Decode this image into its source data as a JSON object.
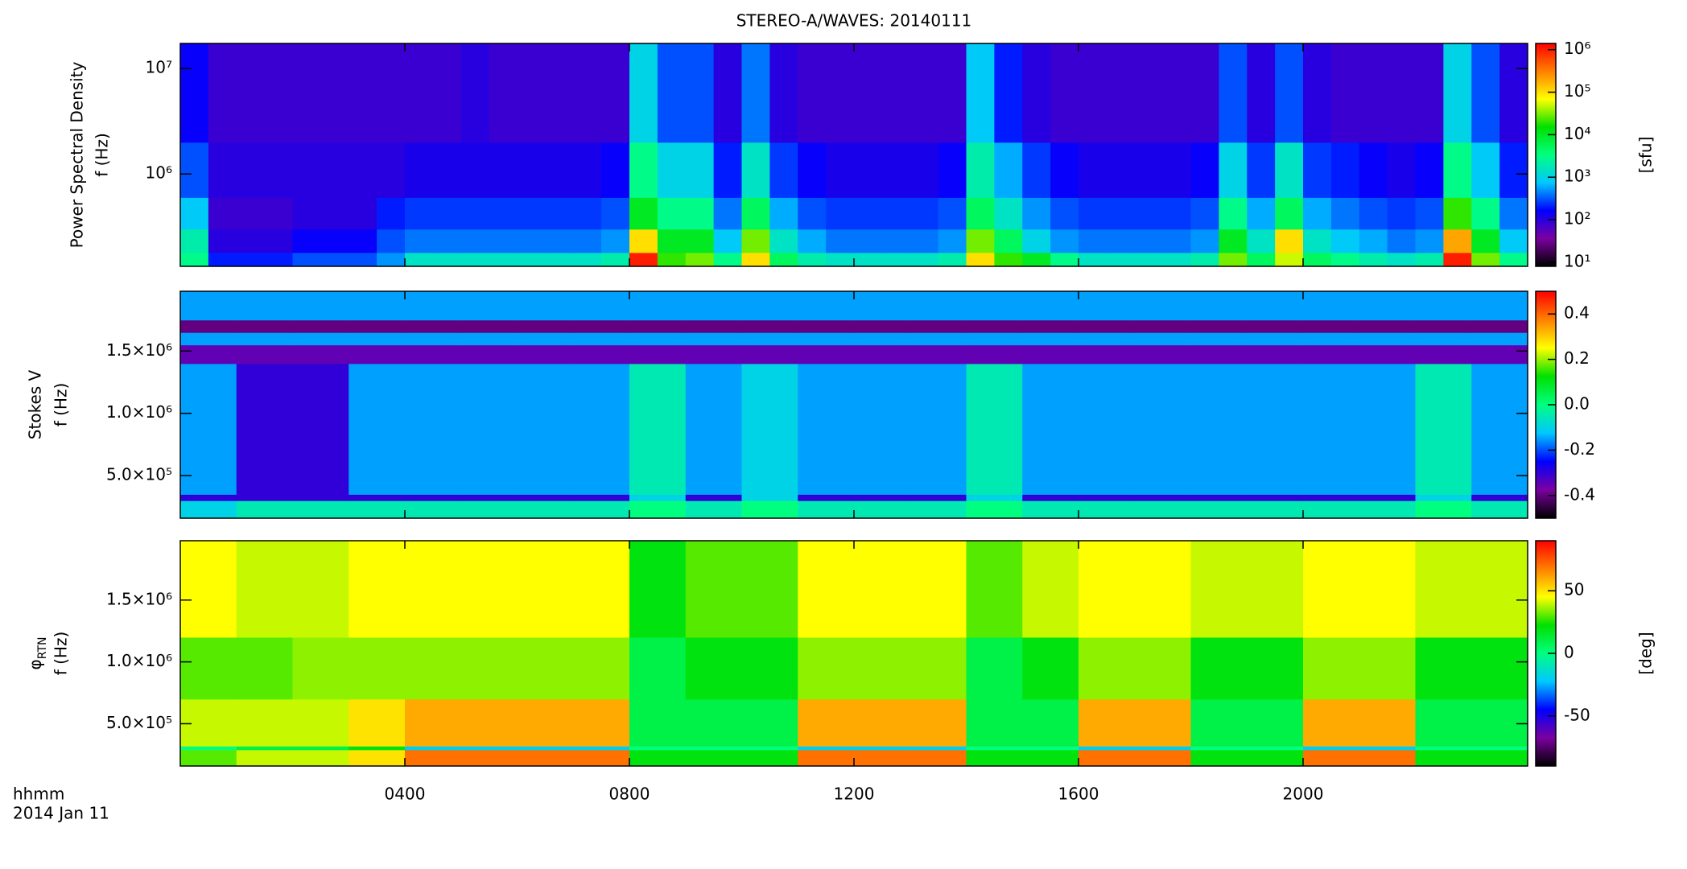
{
  "chart_data": [
    {
      "type": "heatmap",
      "title": "STEREO-A/WAVES: 20140111",
      "y_label": [
        "Power Spectral Density",
        "f (Hz)"
      ],
      "colorbar_label": "[sfu]",
      "y_scale": "log",
      "color_scale": "log",
      "colormap": [
        "#000000",
        "#7b00a0",
        "#0000ff",
        "#00c8ff",
        "#00ff80",
        "#00e000",
        "#ffff00",
        "#ff8000",
        "#ff0000"
      ],
      "xlim": [
        0,
        24
      ],
      "xticks": [
        4,
        8,
        12,
        16,
        20
      ],
      "ylim": [
        133000,
        17300000
      ],
      "yticks": [
        {
          "value": 1000000,
          "label": "10⁶"
        },
        {
          "value": 10000000,
          "label": "10⁷"
        }
      ],
      "clim": [
        8,
        1400000
      ],
      "cticks": [
        {
          "value": 10,
          "label": "10¹"
        },
        {
          "value": 100,
          "label": "10²"
        },
        {
          "value": 1000,
          "label": "10³"
        },
        {
          "value": 10000,
          "label": "10⁴"
        },
        {
          "value": 100000,
          "label": "10⁵"
        },
        {
          "value": 1000000,
          "label": "10⁶"
        }
      ],
      "xbins": [
        0,
        0.5,
        1,
        1.5,
        2,
        2.5,
        3,
        3.5,
        4,
        4.5,
        5,
        5.5,
        6,
        6.5,
        7,
        7.5,
        8,
        8.5,
        9,
        9.5,
        10,
        10.5,
        11,
        11.5,
        12,
        12.5,
        13,
        13.5,
        14,
        14.5,
        15,
        15.5,
        16,
        16.5,
        17,
        17.5,
        18,
        18.5,
        19,
        19.5,
        20,
        20.5,
        21,
        21.5,
        22,
        22.5,
        23,
        23.5,
        24
      ],
      "ybins": [
        133000,
        180000,
        300000,
        600000,
        2000000,
        17300000
      ],
      "z": [
        [
          3000,
          200,
          200,
          200,
          300,
          300,
          300,
          500,
          1500,
          1500,
          1500,
          1500,
          1500,
          1500,
          1500,
          2000,
          1000000,
          20000,
          30000,
          3000,
          100000,
          5000,
          2000,
          1500,
          1500,
          1500,
          1500,
          2000,
          100000,
          20000,
          10000,
          3000,
          1500,
          1500,
          1500,
          1500,
          2000,
          30000,
          5000,
          50000,
          5000,
          3000,
          2000,
          1500,
          2000,
          1000000,
          30000,
          3000
        ],
        [
          2000,
          100,
          100,
          100,
          150,
          150,
          150,
          300,
          400,
          400,
          400,
          400,
          400,
          400,
          400,
          500,
          100000,
          10000,
          10000,
          800,
          30000,
          1500,
          600,
          400,
          400,
          400,
          400,
          500,
          30000,
          5000,
          1000,
          500,
          400,
          400,
          400,
          400,
          500,
          10000,
          1500,
          100000,
          1500,
          800,
          600,
          400,
          500,
          200000,
          10000,
          800
        ],
        [
          800,
          80,
          80,
          80,
          100,
          100,
          100,
          200,
          250,
          250,
          250,
          250,
          250,
          250,
          250,
          300,
          10000,
          3000,
          3000,
          400,
          5000,
          600,
          300,
          250,
          250,
          250,
          250,
          300,
          5000,
          1500,
          500,
          300,
          250,
          250,
          250,
          250,
          300,
          3000,
          600,
          5000,
          600,
          400,
          300,
          250,
          300,
          20000,
          3000,
          400
        ],
        [
          300,
          100,
          100,
          100,
          100,
          100,
          100,
          100,
          120,
          120,
          120,
          120,
          120,
          120,
          120,
          150,
          3000,
          1000,
          1000,
          200,
          1500,
          250,
          150,
          120,
          120,
          120,
          120,
          150,
          2000,
          600,
          250,
          150,
          120,
          120,
          120,
          120,
          150,
          1000,
          250,
          1500,
          250,
          200,
          150,
          120,
          150,
          3000,
          800,
          200
        ],
        [
          150,
          80,
          80,
          80,
          80,
          80,
          80,
          80,
          80,
          80,
          100,
          80,
          80,
          80,
          80,
          80,
          1000,
          300,
          300,
          100,
          400,
          100,
          80,
          80,
          80,
          80,
          80,
          80,
          800,
          200,
          100,
          80,
          80,
          80,
          80,
          80,
          80,
          300,
          100,
          300,
          100,
          80,
          80,
          80,
          80,
          1000,
          300,
          100
        ]
      ]
    },
    {
      "type": "heatmap",
      "y_label": [
        "Stokes V",
        "f (Hz)"
      ],
      "y_scale": "linear",
      "color_scale": "linear",
      "colormap": [
        "#000000",
        "#7b00a0",
        "#0000ff",
        "#00c8ff",
        "#00ff80",
        "#00e000",
        "#ffff00",
        "#ff8000",
        "#ff0000"
      ],
      "xlim": [
        0,
        24
      ],
      "xticks": [
        4,
        8,
        12,
        16,
        20
      ],
      "ylim": [
        158000,
        1980000
      ],
      "yticks": [
        {
          "value": 500000,
          "label": "5.0×10⁵"
        },
        {
          "value": 1000000,
          "label": "1.0×10⁶"
        },
        {
          "value": 1500000,
          "label": "1.5×10⁶"
        }
      ],
      "clim": [
        -0.5,
        0.5
      ],
      "cticks": [
        -0.4,
        -0.2,
        {
          "value": 0,
          "label": "0.0"
        },
        0.2,
        0.4
      ],
      "xbins": [
        0,
        1,
        2,
        3,
        4,
        5,
        6,
        7,
        8,
        9,
        10,
        11,
        12,
        13,
        14,
        15,
        16,
        17,
        18,
        19,
        20,
        21,
        22,
        23,
        24
      ],
      "ybins": [
        158000,
        300000,
        350000,
        1400000,
        1550000,
        1650000,
        1750000,
        1980000
      ],
      "z": [
        [
          -0.1,
          -0.05,
          -0.05,
          -0.05,
          -0.05,
          -0.05,
          -0.05,
          -0.05,
          0,
          -0.05,
          0,
          -0.05,
          -0.05,
          -0.05,
          0,
          -0.05,
          -0.05,
          -0.05,
          -0.05,
          -0.05,
          -0.05,
          -0.05,
          0,
          -0.05
        ],
        [
          -0.3,
          -0.3,
          -0.3,
          -0.3,
          -0.3,
          -0.3,
          -0.3,
          -0.3,
          -0.1,
          -0.3,
          -0.1,
          -0.3,
          -0.3,
          -0.3,
          -0.1,
          -0.3,
          -0.3,
          -0.3,
          -0.3,
          -0.3,
          -0.3,
          -0.3,
          -0.1,
          -0.3
        ],
        [
          -0.15,
          -0.3,
          -0.3,
          -0.15,
          -0.15,
          -0.15,
          -0.15,
          -0.15,
          -0.05,
          -0.15,
          -0.1,
          -0.15,
          -0.15,
          -0.15,
          -0.05,
          -0.15,
          -0.15,
          -0.15,
          -0.15,
          -0.15,
          -0.15,
          -0.15,
          -0.05,
          -0.15
        ],
        [
          -0.35,
          -0.35,
          -0.35,
          -0.35,
          -0.35,
          -0.35,
          -0.35,
          -0.35,
          -0.35,
          -0.35,
          -0.35,
          -0.35,
          -0.35,
          -0.35,
          -0.35,
          -0.35,
          -0.35,
          -0.35,
          -0.35,
          -0.35,
          -0.35,
          -0.35,
          -0.35,
          -0.35
        ],
        [
          -0.15,
          -0.15,
          -0.15,
          -0.15,
          -0.15,
          -0.15,
          -0.15,
          -0.15,
          -0.15,
          -0.15,
          -0.15,
          -0.15,
          -0.15,
          -0.15,
          -0.15,
          -0.15,
          -0.15,
          -0.15,
          -0.15,
          -0.15,
          -0.15,
          -0.15,
          -0.15,
          -0.15
        ],
        [
          -0.4,
          -0.4,
          -0.4,
          -0.4,
          -0.4,
          -0.4,
          -0.4,
          -0.4,
          -0.4,
          -0.4,
          -0.4,
          -0.4,
          -0.4,
          -0.4,
          -0.4,
          -0.4,
          -0.4,
          -0.4,
          -0.4,
          -0.4,
          -0.4,
          -0.4,
          -0.4,
          -0.4
        ],
        [
          -0.15,
          -0.15,
          -0.15,
          -0.15,
          -0.15,
          -0.15,
          -0.15,
          -0.15,
          -0.15,
          -0.15,
          -0.15,
          -0.15,
          -0.15,
          -0.15,
          -0.15,
          -0.15,
          -0.15,
          -0.15,
          -0.15,
          -0.15,
          -0.15,
          -0.15,
          -0.15,
          -0.15
        ]
      ]
    },
    {
      "type": "heatmap",
      "y_label": [
        "φ",
        "f (Hz)"
      ],
      "y_label_sub": "RTN",
      "colorbar_label": "[deg]",
      "x_label": "hhmm",
      "date_label": "2014 Jan 11",
      "y_scale": "linear",
      "color_scale": "linear",
      "colormap": [
        "#000000",
        "#7b00a0",
        "#0000ff",
        "#00c8ff",
        "#00ff80",
        "#00e000",
        "#ffff00",
        "#ff8000",
        "#ff0000"
      ],
      "xlim": [
        0,
        24
      ],
      "xticks": [
        {
          "value": 4,
          "label": "0400"
        },
        {
          "value": 8,
          "label": "0800"
        },
        {
          "value": 12,
          "label": "1200"
        },
        {
          "value": 16,
          "label": "1600"
        },
        {
          "value": 20,
          "label": "2000"
        }
      ],
      "ylim": [
        158000,
        1980000
      ],
      "yticks": [
        {
          "value": 500000,
          "label": "5.0×10⁵"
        },
        {
          "value": 1000000,
          "label": "1.0×10⁶"
        },
        {
          "value": 1500000,
          "label": "1.5×10⁶"
        }
      ],
      "clim": [
        -90,
        90
      ],
      "cticks": [
        -50,
        0,
        50
      ],
      "xbins": [
        0,
        1,
        2,
        3,
        4,
        5,
        6,
        7,
        8,
        9,
        10,
        11,
        12,
        13,
        14,
        15,
        16,
        17,
        18,
        19,
        20,
        21,
        22,
        23,
        24
      ],
      "ybins": [
        158000,
        290000,
        320000,
        700000,
        1200000,
        1980000
      ],
      "z": [
        [
          30,
          40,
          40,
          50,
          70,
          70,
          70,
          70,
          20,
          20,
          20,
          70,
          70,
          70,
          20,
          20,
          70,
          70,
          20,
          20,
          70,
          70,
          20,
          20
        ],
        [
          0,
          10,
          10,
          20,
          -20,
          -20,
          -20,
          -20,
          0,
          0,
          0,
          -20,
          -20,
          -20,
          0,
          0,
          -20,
          -20,
          0,
          0,
          -20,
          -20,
          0,
          0
        ],
        [
          40,
          40,
          40,
          50,
          60,
          60,
          60,
          60,
          10,
          10,
          10,
          60,
          60,
          60,
          10,
          10,
          60,
          60,
          10,
          10,
          60,
          60,
          10,
          10
        ],
        [
          30,
          30,
          35,
          35,
          35,
          35,
          35,
          35,
          10,
          20,
          20,
          35,
          35,
          35,
          10,
          20,
          35,
          35,
          20,
          20,
          35,
          35,
          20,
          20
        ],
        [
          45,
          40,
          40,
          45,
          45,
          45,
          45,
          45,
          20,
          30,
          30,
          45,
          45,
          45,
          30,
          40,
          45,
          45,
          40,
          40,
          45,
          45,
          40,
          40
        ]
      ]
    }
  ]
}
